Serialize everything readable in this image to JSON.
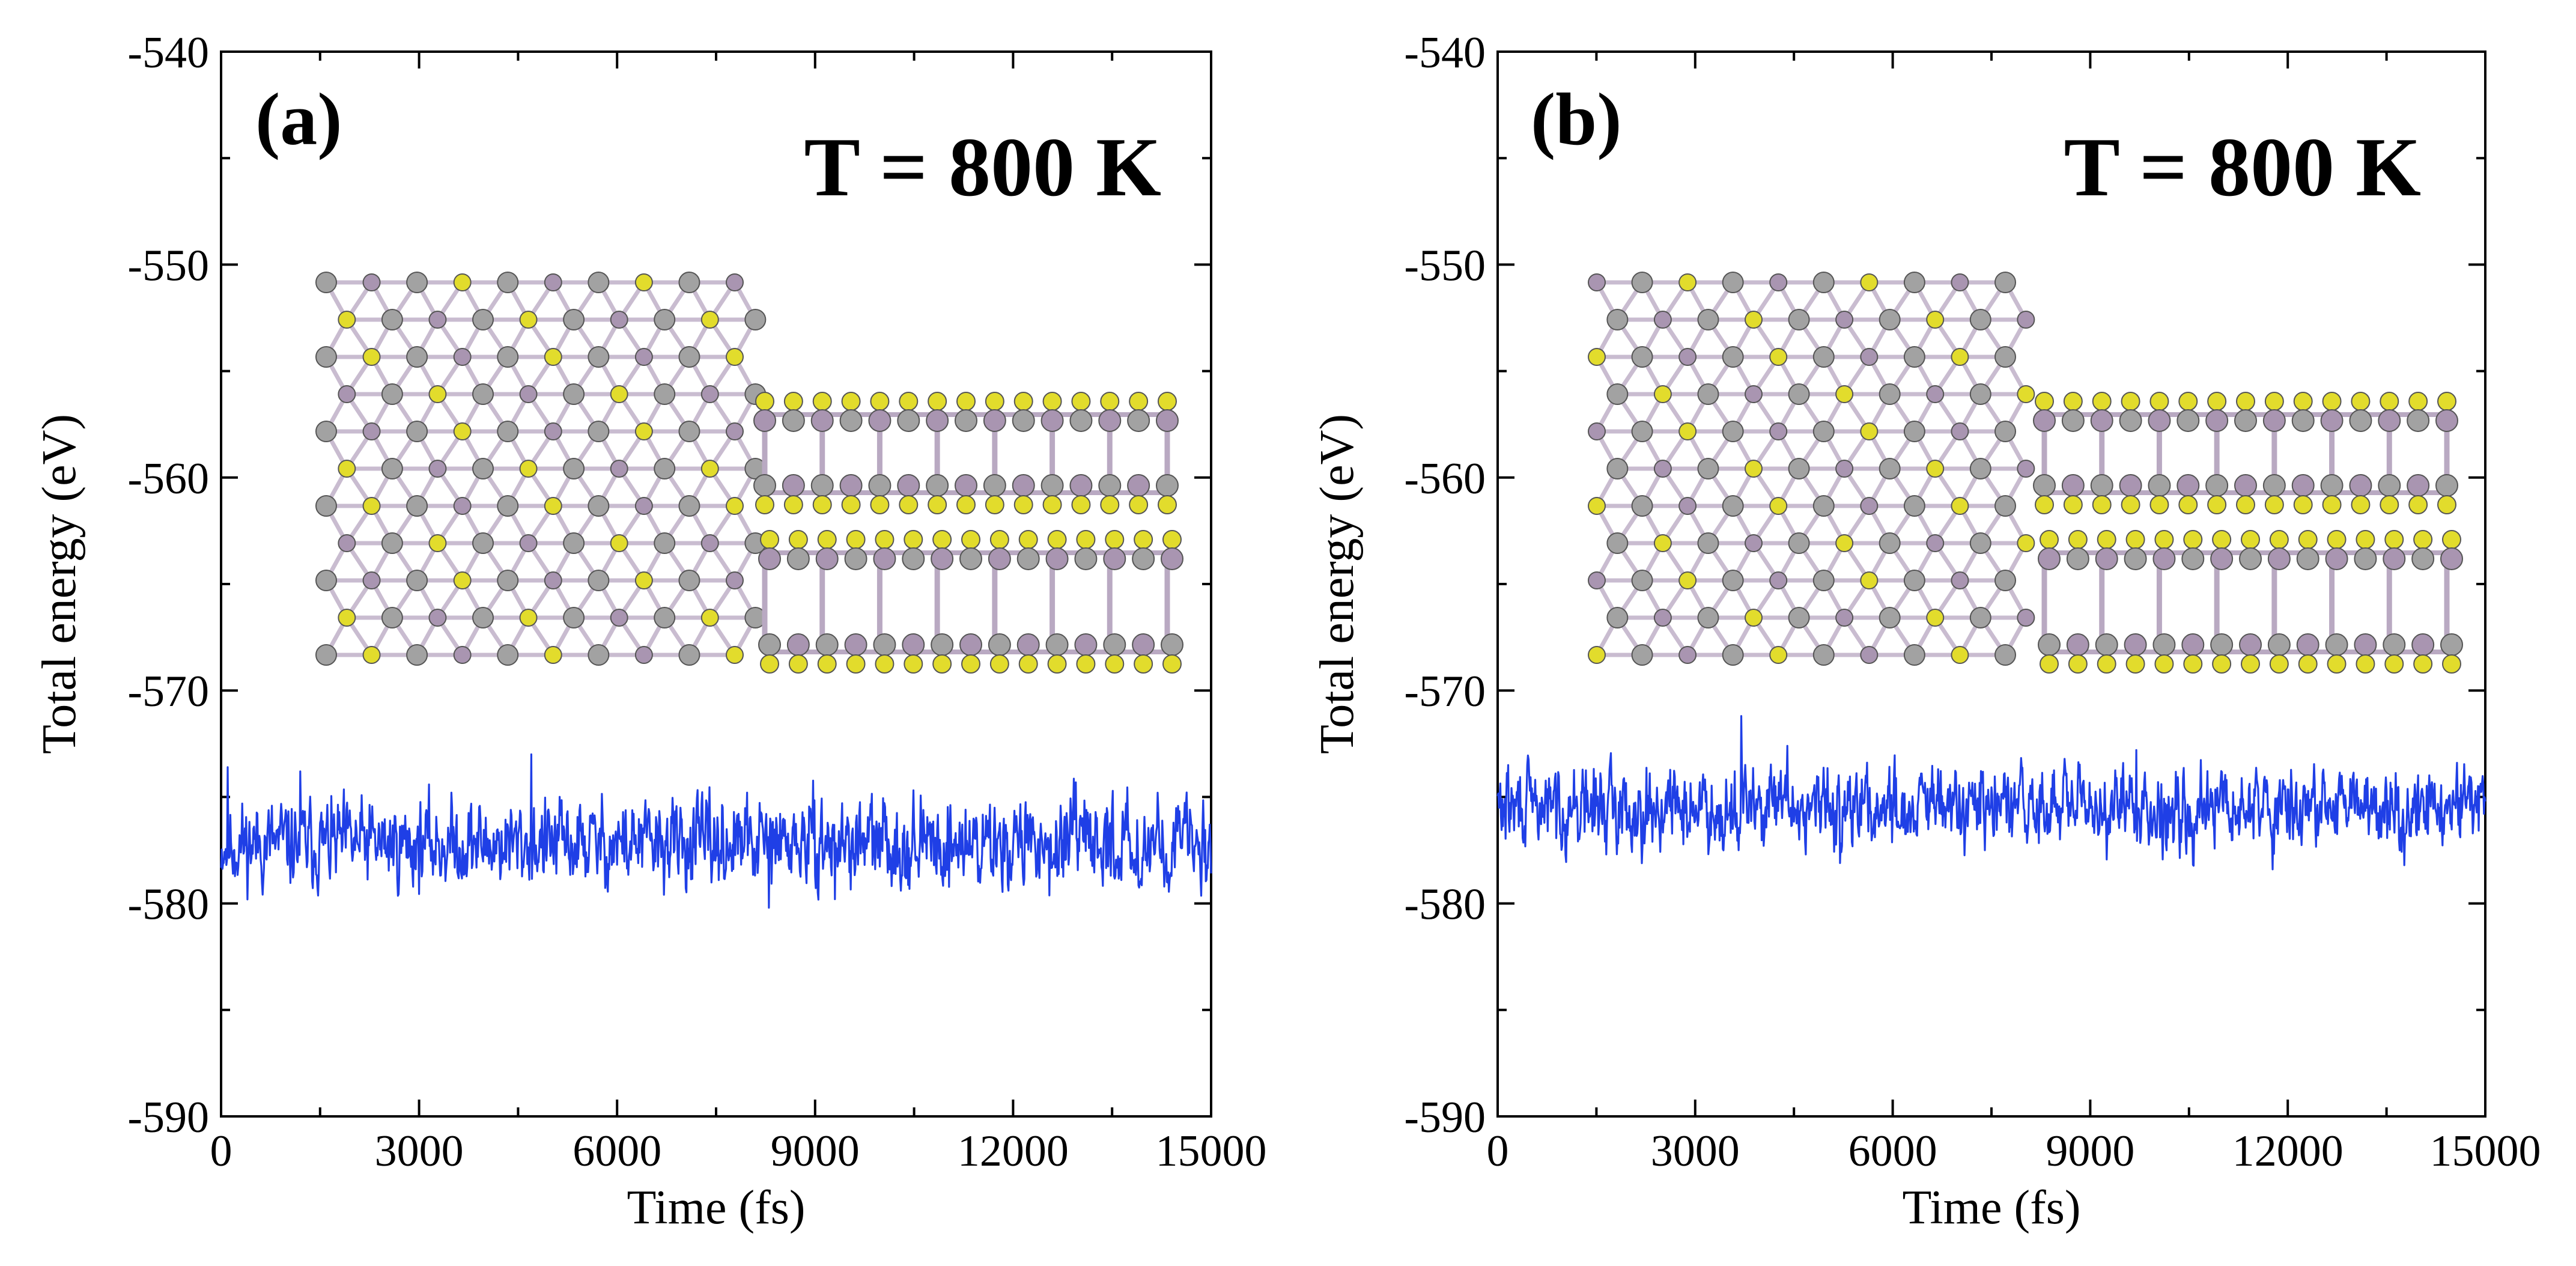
{
  "chart_data": [
    {
      "type": "line",
      "panel_label": "(a)",
      "annotation": "T = 800 K",
      "xlabel": "Time (fs)",
      "ylabel": "Total energy (eV)",
      "xlim": [
        0,
        15000
      ],
      "ylim": [
        -590,
        -540
      ],
      "xticks": [
        0,
        3000,
        6000,
        9000,
        12000,
        15000
      ],
      "xtick_labels": [
        "0",
        "3000",
        "6000",
        "9000",
        "12000",
        "15000"
      ],
      "yticks": [
        -590,
        -580,
        -570,
        -560,
        -550,
        -540
      ],
      "ytick_labels": [
        "-590",
        "-580",
        "-570",
        "-560",
        "-550",
        "-540"
      ],
      "series": [
        {
          "name": "Total energy",
          "color": "#1f3fe6",
          "mean": -577.2,
          "amplitude": 1.2,
          "seed": 11,
          "n_points": 1500,
          "spikes": [
            [
              100,
              -573.6
            ],
            [
              1200,
              -573.8
            ],
            [
              4700,
              -573.0
            ],
            [
              8300,
              -580.2
            ],
            [
              9300,
              -579.8
            ]
          ]
        }
      ],
      "inset_atom_colors": {
        "metal": "#a995b1",
        "carbon": "#a2a2a2",
        "chalcogen": "#e2dc2c"
      }
    },
    {
      "type": "line",
      "panel_label": "(b)",
      "annotation": "T = 800 K",
      "xlabel": "Time (fs)",
      "ylabel": "Total energy (eV)",
      "xlim": [
        0,
        15000
      ],
      "ylim": [
        -590,
        -540
      ],
      "xticks": [
        0,
        3000,
        6000,
        9000,
        12000,
        15000
      ],
      "xtick_labels": [
        "0",
        "3000",
        "6000",
        "9000",
        "12000",
        "15000"
      ],
      "yticks": [
        -590,
        -580,
        -570,
        -560,
        -550,
        -540
      ],
      "ytick_labels": [
        "-590",
        "-580",
        "-570",
        "-560",
        "-550",
        "-540"
      ],
      "series": [
        {
          "name": "Total energy",
          "color": "#1f3fe6",
          "mean": -575.5,
          "amplitude": 1.1,
          "seed": 29,
          "n_points": 1500,
          "spikes": [
            [
              3700,
              -571.2
            ],
            [
              4400,
              -572.6
            ],
            [
              9700,
              -572.8
            ],
            [
              5200,
              -578.1
            ]
          ]
        }
      ],
      "inset_atom_colors": {
        "metal": "#a995b1",
        "carbon": "#a2a2a2",
        "chalcogen": "#e2dc2c"
      }
    }
  ]
}
